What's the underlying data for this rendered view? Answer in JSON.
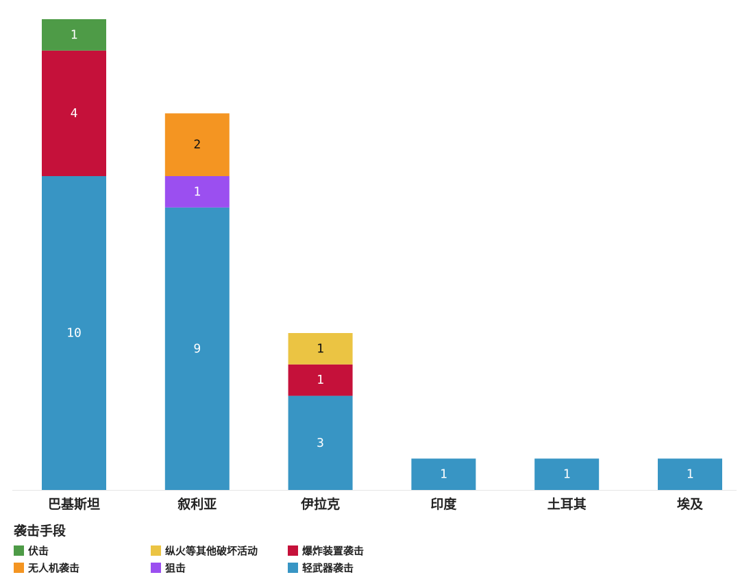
{
  "chart_data": {
    "type": "bar",
    "stacked": true,
    "categories": [
      "巴基斯坦",
      "叙利亚",
      "伊拉克",
      "印度",
      "土耳其",
      "埃及"
    ],
    "series": [
      {
        "name": "轻武器袭击",
        "color": "#3895c4",
        "values": [
          10,
          9,
          3,
          1,
          1,
          1
        ]
      },
      {
        "name": "狙击",
        "color": "#9b4ff0",
        "values": [
          0,
          1,
          0,
          0,
          0,
          0
        ]
      },
      {
        "name": "无人机袭击",
        "color": "#f49522",
        "values": [
          0,
          2,
          0,
          0,
          0,
          0
        ]
      },
      {
        "name": "爆炸装置袭击",
        "color": "#c5113a",
        "values": [
          4,
          0,
          1,
          0,
          0,
          0
        ]
      },
      {
        "name": "纵火等其他破坏活动",
        "color": "#ebc443",
        "values": [
          0,
          0,
          1,
          0,
          0,
          0
        ]
      },
      {
        "name": "伏击",
        "color": "#4e9b47",
        "values": [
          1,
          0,
          0,
          0,
          0,
          0
        ]
      }
    ],
    "ylim": [
      0,
      15
    ],
    "grid": false,
    "legend": {
      "title": "袭击手段",
      "placement": "bottom-left",
      "order": [
        "伏击",
        "纵火等其他破坏活动",
        "爆炸装置袭击",
        "无人机袭击",
        "狙击",
        "轻武器袭击"
      ]
    }
  }
}
